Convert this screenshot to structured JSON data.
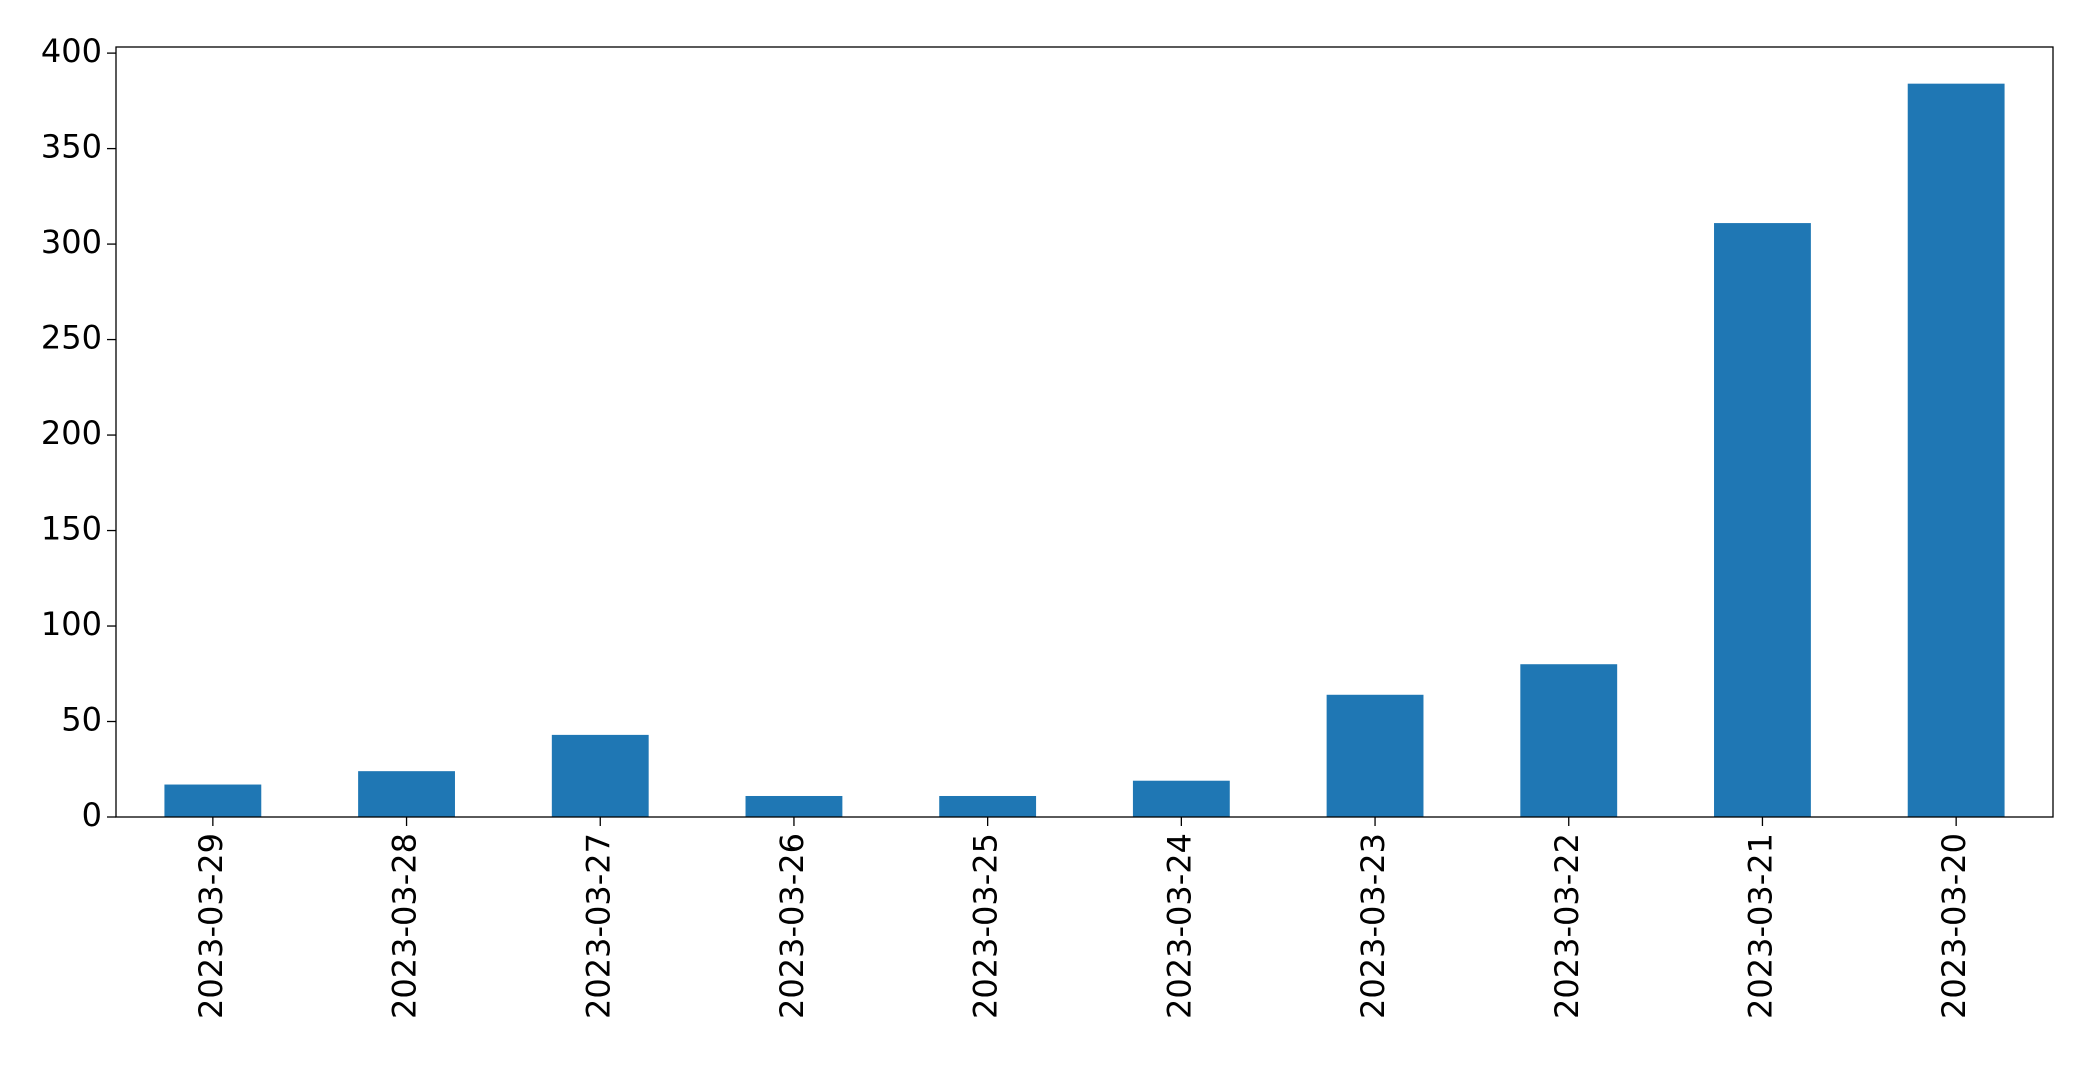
{
  "chart_data": {
    "type": "bar",
    "categories": [
      "2023-03-29",
      "2023-03-28",
      "2023-03-27",
      "2023-03-26",
      "2023-03-25",
      "2023-03-24",
      "2023-03-23",
      "2023-03-22",
      "2023-03-21",
      "2023-03-20"
    ],
    "values": [
      17,
      24,
      43,
      11,
      11,
      19,
      64,
      80,
      311,
      384
    ],
    "color": "#1f77b4",
    "ylim": [
      0,
      403.2
    ],
    "yticks": [
      0,
      50,
      100,
      150,
      200,
      250,
      300,
      350,
      400
    ],
    "grid": false
  }
}
